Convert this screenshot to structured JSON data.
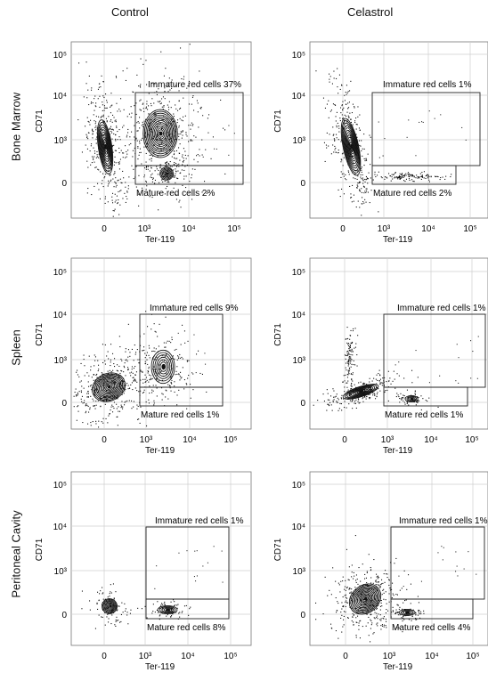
{
  "columns": [
    "Control",
    "Celastrol"
  ],
  "rows": [
    "Bone Marrow",
    "Spleen",
    "Peritoneal Cavity"
  ],
  "axes": {
    "xlabel": "Ter-119",
    "ylabel": "CD71"
  },
  "gate_labels": {
    "immature": "Immature red cells",
    "mature": "Mature red cells"
  },
  "chart_data": [
    {
      "type": "scatter",
      "row": "Bone Marrow",
      "column": "Control",
      "xlabel": "Ter-119",
      "ylabel": "CD71",
      "xticks": [
        "0",
        "10³",
        "10⁴",
        "10⁵"
      ],
      "yticks": [
        "0",
        "10³",
        "10⁴",
        "10⁵"
      ],
      "gates": [
        {
          "name": "Immature red cells",
          "percent": "37%"
        },
        {
          "name": "Mature red cells",
          "percent": "2%"
        }
      ]
    },
    {
      "type": "scatter",
      "row": "Bone Marrow",
      "column": "Celastrol",
      "xlabel": "Ter-119",
      "ylabel": "CD71",
      "xticks": [
        "0",
        "10³",
        "10⁴",
        "10⁵"
      ],
      "yticks": [
        "0",
        "10³",
        "10⁴",
        "10⁵"
      ],
      "gates": [
        {
          "name": "Immature red cells",
          "percent": "1%"
        },
        {
          "name": "Mature red cells",
          "percent": "2%"
        }
      ]
    },
    {
      "type": "scatter",
      "row": "Spleen",
      "column": "Control",
      "xlabel": "Ter-119",
      "ylabel": "CD71",
      "xticks": [
        "0",
        "10³",
        "10⁴",
        "10⁵"
      ],
      "yticks": [
        "0",
        "10³",
        "10⁴",
        "10⁵"
      ],
      "gates": [
        {
          "name": "Immature red cells",
          "percent": "9%"
        },
        {
          "name": "Mature red cells",
          "percent": "1%"
        }
      ]
    },
    {
      "type": "scatter",
      "row": "Spleen",
      "column": "Celastrol",
      "xlabel": "Ter-119",
      "ylabel": "CD71",
      "xticks": [
        "0",
        "10³",
        "10⁴",
        "10⁵"
      ],
      "yticks": [
        "0",
        "10³",
        "10⁴",
        "10⁵"
      ],
      "gates": [
        {
          "name": "Immature red cells",
          "percent": "1%"
        },
        {
          "name": "Mature red cells",
          "percent": "1%"
        }
      ]
    },
    {
      "type": "scatter",
      "row": "Peritoneal Cavity",
      "column": "Control",
      "xlabel": "Ter-119",
      "ylabel": "CD71",
      "xticks": [
        "0",
        "10³",
        "10⁴",
        "10⁵"
      ],
      "yticks": [
        "0",
        "10³",
        "10⁴",
        "10⁵"
      ],
      "gates": [
        {
          "name": "Immature red cells",
          "percent": "1%"
        },
        {
          "name": "Mature red cells",
          "percent": "8%"
        }
      ]
    },
    {
      "type": "scatter",
      "row": "Peritoneal Cavity",
      "column": "Celastrol",
      "xlabel": "Ter-119",
      "ylabel": "CD71",
      "xticks": [
        "0",
        "10³",
        "10⁴",
        "10⁵"
      ],
      "yticks": [
        "0",
        "10³",
        "10⁴",
        "10⁵"
      ],
      "gates": [
        {
          "name": "Immature red cells",
          "percent": "1%"
        },
        {
          "name": "Mature red cells",
          "percent": "4%"
        }
      ]
    }
  ]
}
